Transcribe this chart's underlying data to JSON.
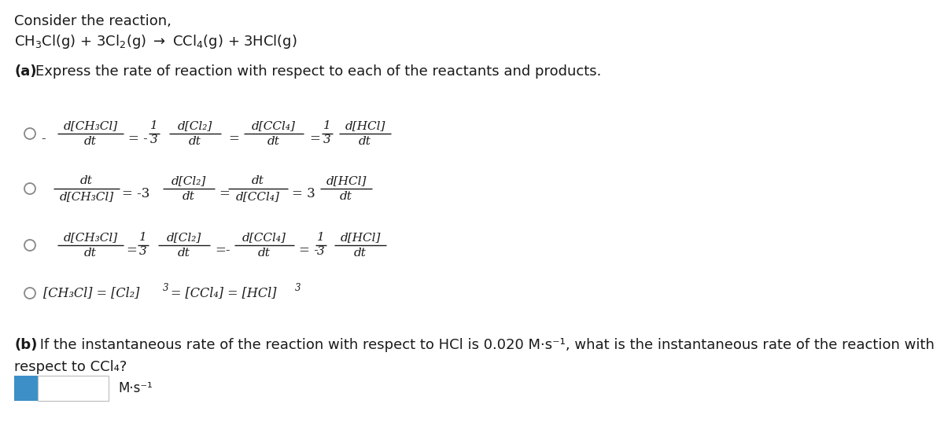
{
  "bg_color": "#ffffff",
  "text_color": "#1a1a1a",
  "title_line1": "Consider the reaction,",
  "title_line2_parts": [
    {
      "text": "CH",
      "style": "normal"
    },
    {
      "text": "3",
      "style": "sub"
    },
    {
      "text": "Cl(g) + 3Cl",
      "style": "normal"
    },
    {
      "text": "2",
      "style": "sub"
    },
    {
      "text": "(g) → CCl",
      "style": "normal"
    },
    {
      "text": "4",
      "style": "sub"
    },
    {
      "text": "(g) + 3HCl(g)",
      "style": "normal"
    }
  ],
  "part_a_bold": "(a)",
  "part_a_rest": " Express the rate of reaction with respect to each of the reactants and products.",
  "part_b_bold": "(b)",
  "part_b_rest": " If the instantaneous rate of the reaction with respect to HCl is 0.020 M·s⁻¹, what is the instantaneous rate of the reaction with",
  "part_b_line2": "respect to CCl₄?",
  "units_label": "M·s⁻¹",
  "input_box_color": "#3d8fc8",
  "input_box_text_color": "#ffffff",
  "radio_color": "#888888"
}
